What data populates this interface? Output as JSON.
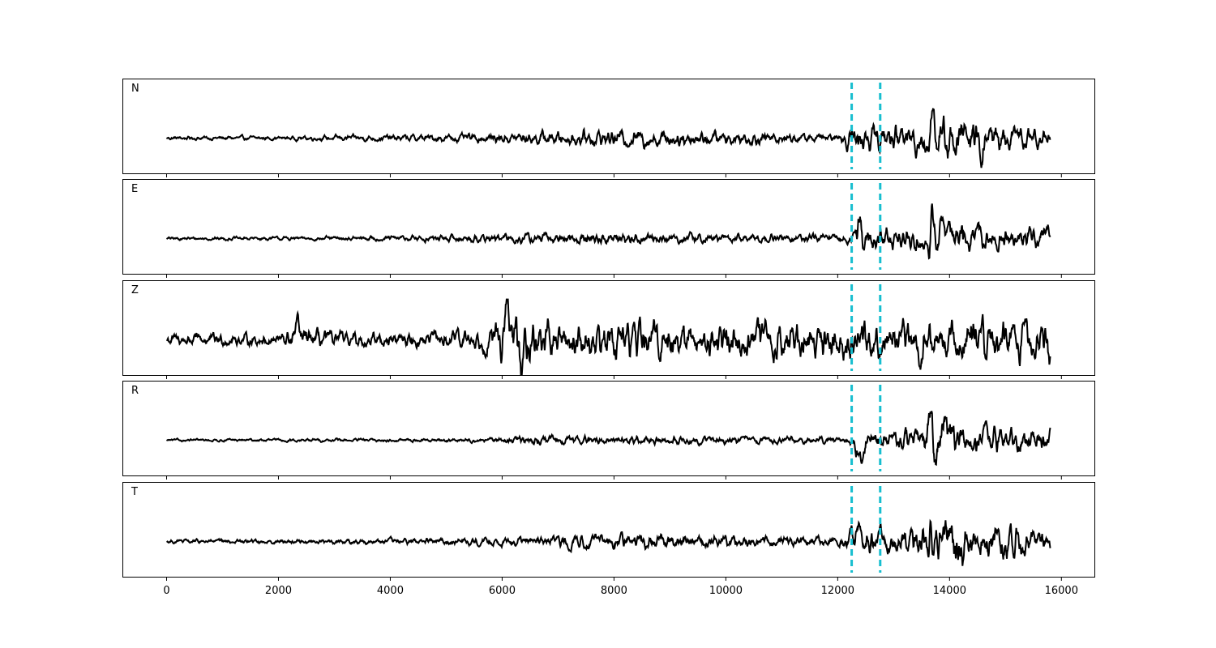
{
  "chart_data": {
    "type": "line",
    "title": "",
    "xlabel": "",
    "ylabel": "",
    "xlim": [
      -790,
      16590
    ],
    "x_ticks": [
      0,
      2000,
      4000,
      6000,
      8000,
      10000,
      12000,
      14000,
      16000
    ],
    "x_tick_labels": [
      "0",
      "2000",
      "4000",
      "6000",
      "8000",
      "10000",
      "12000",
      "14000",
      "16000"
    ],
    "sample_range": [
      0,
      15800
    ],
    "grid": false,
    "legend": "none",
    "line_color": "#000000",
    "marker_color": "#17becf",
    "markers": [
      12250,
      12760
    ],
    "panels": [
      {
        "name": "N",
        "ylim": [
          -1,
          1
        ],
        "envelope": [
          [
            0,
            0.05
          ],
          [
            2000,
            0.05
          ],
          [
            5500,
            0.1
          ],
          [
            7600,
            0.2
          ],
          [
            8500,
            0.22
          ],
          [
            10500,
            0.15
          ],
          [
            12000,
            0.08
          ],
          [
            12250,
            0.3
          ],
          [
            13000,
            0.35
          ],
          [
            13500,
            0.4
          ],
          [
            14000,
            0.5
          ],
          [
            15000,
            0.35
          ],
          [
            15800,
            0.2
          ]
        ],
        "spikes": [
          {
            "x": 13680,
            "amp": 1.0,
            "width": 40
          },
          {
            "x": 13650,
            "amp": -0.55,
            "width": 40
          },
          {
            "x": 14550,
            "amp": -0.5,
            "width": 45
          }
        ]
      },
      {
        "name": "E",
        "ylim": [
          -1,
          1
        ],
        "envelope": [
          [
            0,
            0.04
          ],
          [
            3000,
            0.05
          ],
          [
            5800,
            0.1
          ],
          [
            7500,
            0.15
          ],
          [
            9000,
            0.12
          ],
          [
            11500,
            0.1
          ],
          [
            12200,
            0.1
          ],
          [
            12400,
            0.4
          ],
          [
            13000,
            0.25
          ],
          [
            13500,
            0.3
          ],
          [
            14000,
            0.35
          ],
          [
            15000,
            0.25
          ],
          [
            15800,
            0.25
          ]
        ],
        "spikes": [
          {
            "x": 12400,
            "amp": 0.65,
            "width": 40
          },
          {
            "x": 12430,
            "amp": -0.3,
            "width": 40
          },
          {
            "x": 13680,
            "amp": 0.82,
            "width": 50
          },
          {
            "x": 13640,
            "amp": -0.85,
            "width": 40
          },
          {
            "x": 13870,
            "amp": 0.45,
            "width": 45
          }
        ]
      },
      {
        "name": "Z",
        "ylim": [
          -1,
          1
        ],
        "envelope": [
          [
            0,
            0.15
          ],
          [
            2000,
            0.15
          ],
          [
            2300,
            0.3
          ],
          [
            3000,
            0.18
          ],
          [
            5000,
            0.2
          ],
          [
            5800,
            0.3
          ],
          [
            6000,
            0.6
          ],
          [
            6400,
            0.55
          ],
          [
            7000,
            0.4
          ],
          [
            8000,
            0.5
          ],
          [
            9000,
            0.45
          ],
          [
            11000,
            0.45
          ],
          [
            13000,
            0.5
          ],
          [
            15000,
            0.45
          ],
          [
            15800,
            0.45
          ]
        ],
        "spikes": [
          {
            "x": 6100,
            "amp": 0.8,
            "width": 45
          },
          {
            "x": 6350,
            "amp": -0.9,
            "width": 45
          },
          {
            "x": 2330,
            "amp": 0.4,
            "width": 40
          },
          {
            "x": 15790,
            "amp": -0.6,
            "width": 30
          }
        ]
      },
      {
        "name": "R",
        "ylim": [
          -1,
          1
        ],
        "envelope": [
          [
            0,
            0.03
          ],
          [
            5800,
            0.05
          ],
          [
            6200,
            0.1
          ],
          [
            8500,
            0.1
          ],
          [
            11500,
            0.08
          ],
          [
            12200,
            0.08
          ],
          [
            12300,
            0.3
          ],
          [
            13000,
            0.25
          ],
          [
            13500,
            0.3
          ],
          [
            13700,
            0.5
          ],
          [
            14000,
            0.4
          ],
          [
            15000,
            0.3
          ],
          [
            15800,
            0.25
          ]
        ],
        "spikes": [
          {
            "x": 12400,
            "amp": -0.6,
            "width": 40
          },
          {
            "x": 13680,
            "amp": 0.95,
            "width": 50
          },
          {
            "x": 13720,
            "amp": -0.95,
            "width": 45
          },
          {
            "x": 13900,
            "amp": 0.45,
            "width": 45
          }
        ]
      },
      {
        "name": "T",
        "ylim": [
          -1,
          1
        ],
        "envelope": [
          [
            0,
            0.05
          ],
          [
            3000,
            0.06
          ],
          [
            6000,
            0.1
          ],
          [
            8000,
            0.18
          ],
          [
            10000,
            0.15
          ],
          [
            12000,
            0.1
          ],
          [
            12300,
            0.35
          ],
          [
            13000,
            0.3
          ],
          [
            13600,
            0.45
          ],
          [
            14000,
            0.55
          ],
          [
            15000,
            0.45
          ],
          [
            15800,
            0.3
          ]
        ],
        "spikes": [
          {
            "x": 13670,
            "amp": 0.92,
            "width": 35
          },
          {
            "x": 13690,
            "amp": -0.9,
            "width": 35
          },
          {
            "x": 12380,
            "amp": 0.4,
            "width": 40
          }
        ]
      }
    ]
  }
}
